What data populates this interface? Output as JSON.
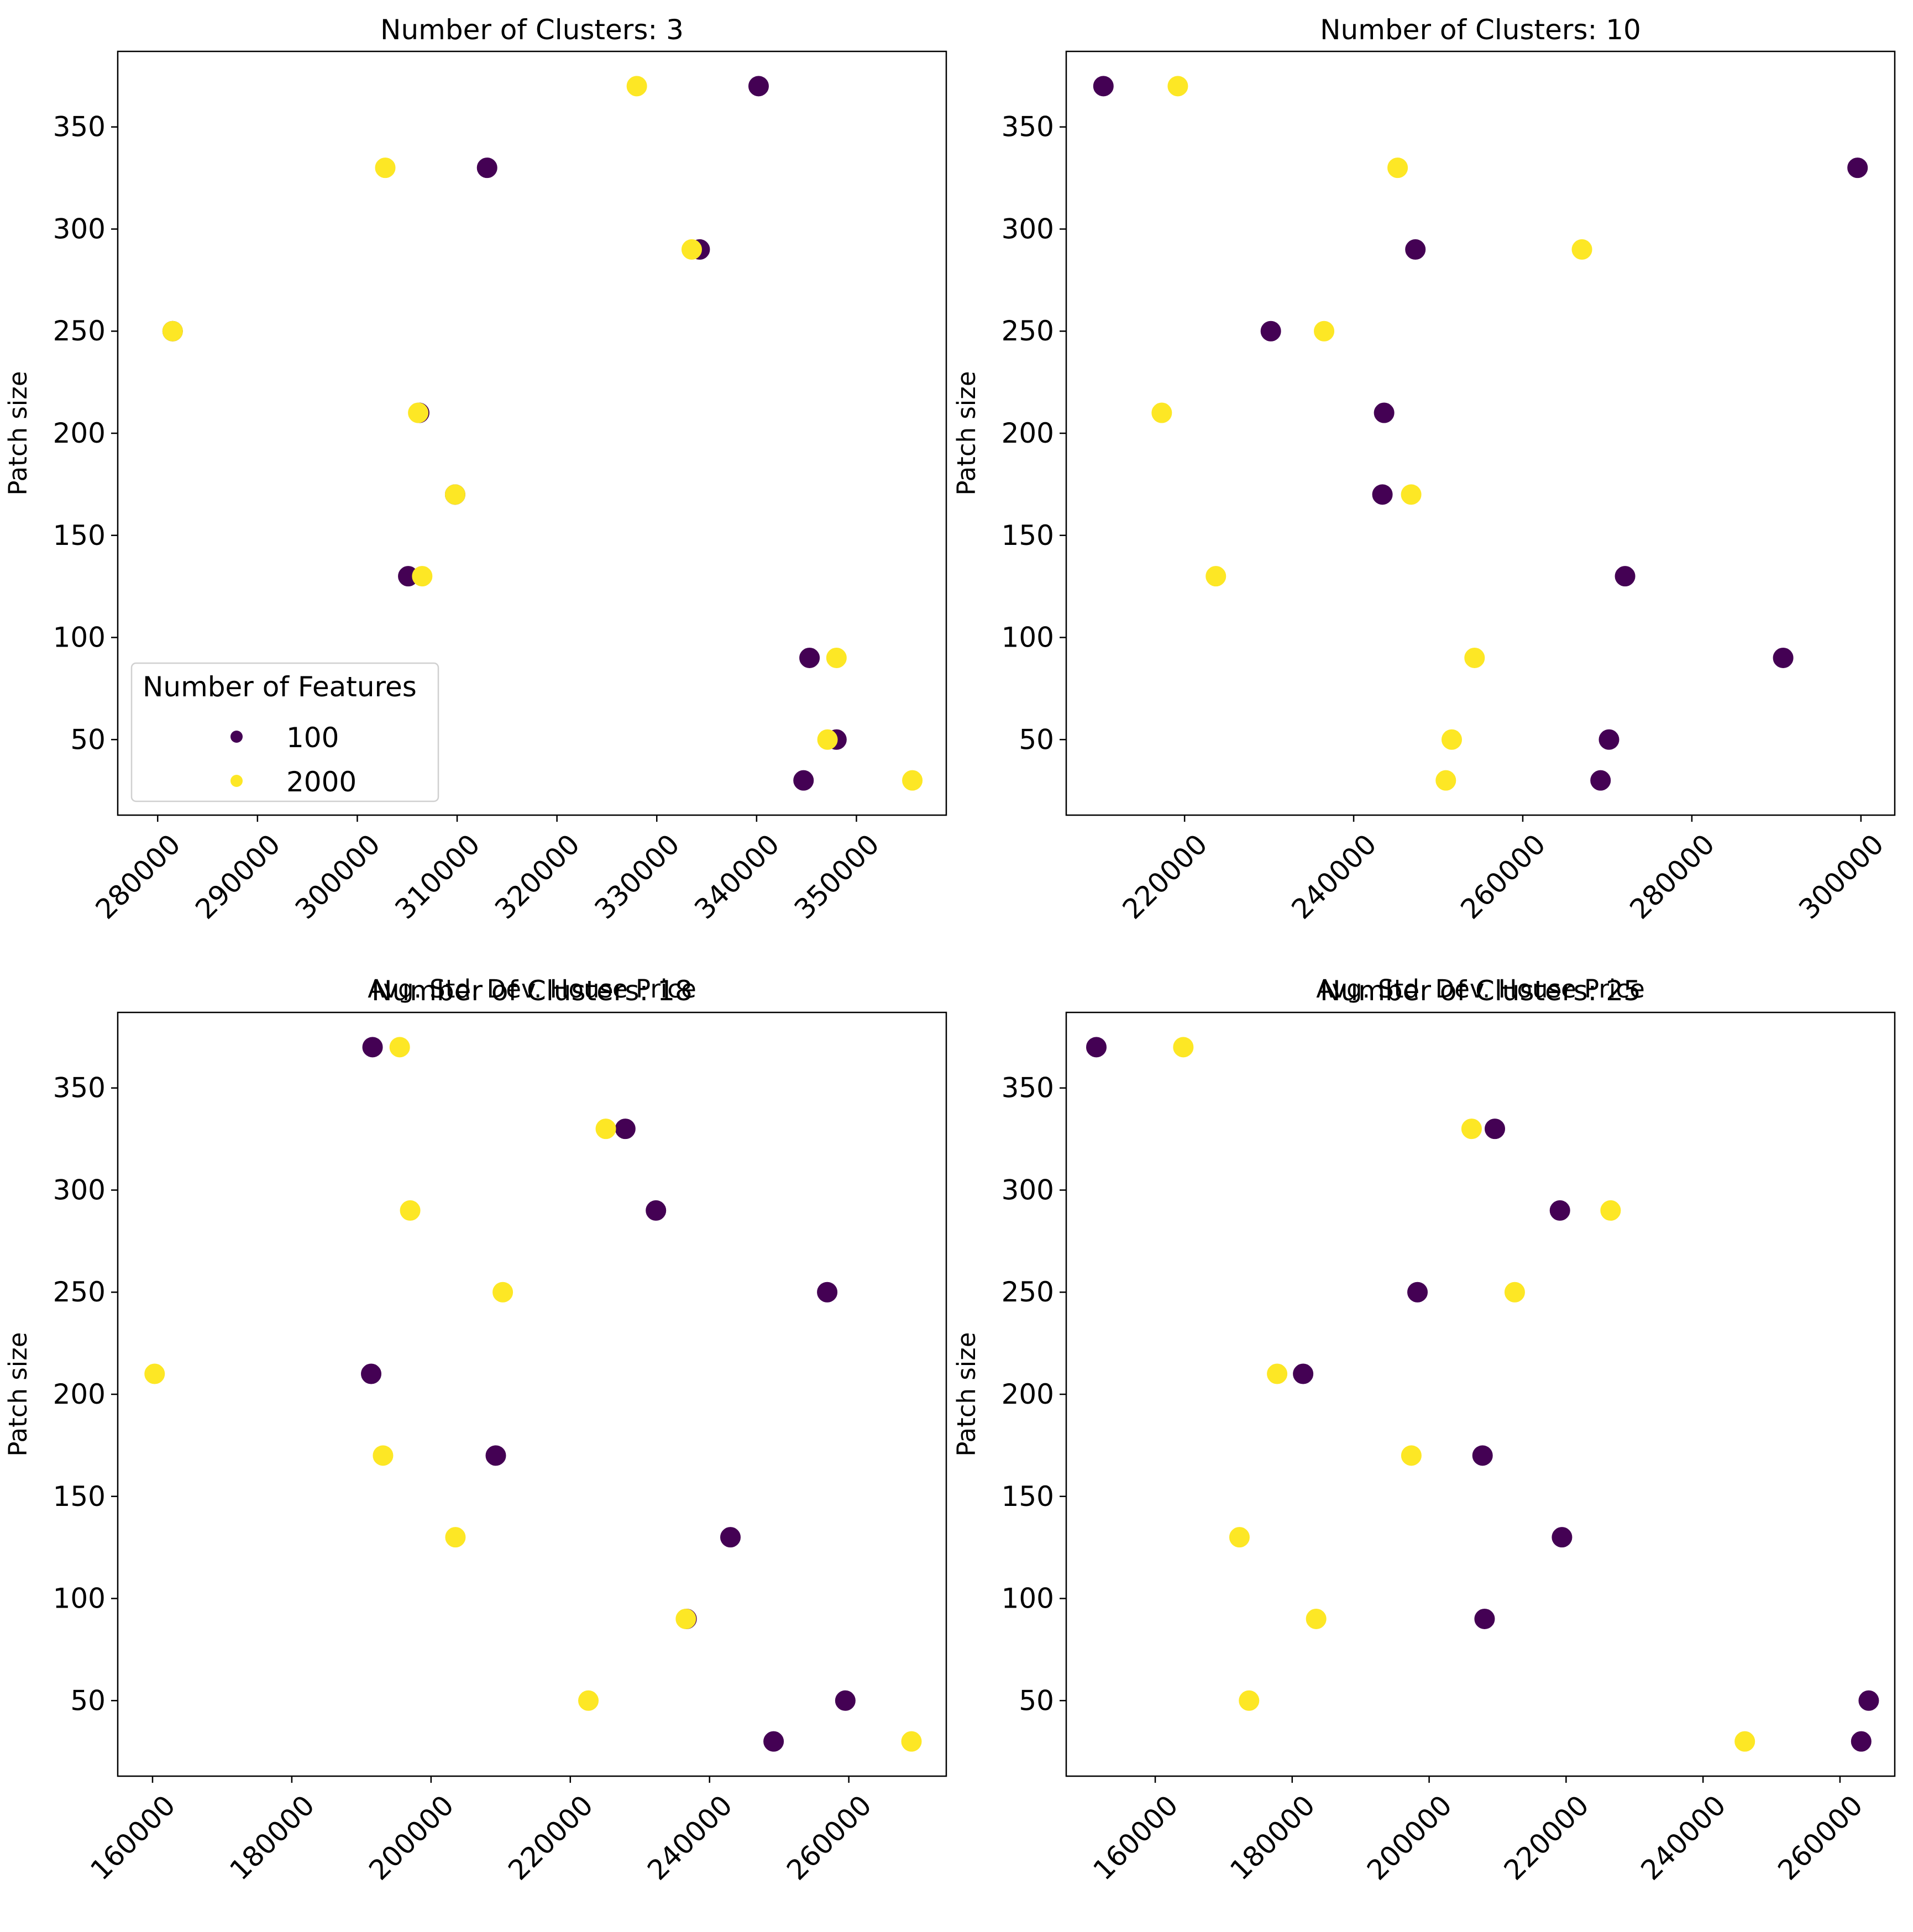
{
  "colors": {
    "100": "#440154",
    "2000": "#fde725"
  },
  "legend": {
    "title": "Number of Features",
    "entries": [
      {
        "label": "100",
        "color": "#440154"
      },
      {
        "label": "2000",
        "color": "#fde725"
      }
    ],
    "placement": "lower-left"
  },
  "chart_data": [
    {
      "type": "scatter",
      "title": "Number of Clusters: 3",
      "xlabel": "Avg. Std. Dev. House Price",
      "ylabel": "Patch size",
      "xlim": [
        276000,
        359000
      ],
      "ylim": [
        13,
        387
      ],
      "xticks": [
        280000,
        290000,
        300000,
        310000,
        320000,
        330000,
        340000,
        350000
      ],
      "yticks": [
        50,
        100,
        150,
        200,
        250,
        300,
        350
      ],
      "series": [
        {
          "name": "100",
          "points": [
            [
              340200,
              370
            ],
            [
              313000,
              330
            ],
            [
              334300,
              290
            ],
            [
              281500,
              250
            ],
            [
              306200,
              210
            ],
            [
              309800,
              170
            ],
            [
              305100,
              130
            ],
            [
              345300,
              90
            ],
            [
              348000,
              50
            ],
            [
              344700,
              30
            ]
          ]
        },
        {
          "name": "2000",
          "points": [
            [
              328000,
              370
            ],
            [
              302800,
              330
            ],
            [
              333500,
              290
            ],
            [
              281500,
              250
            ],
            [
              306100,
              210
            ],
            [
              309800,
              170
            ],
            [
              306500,
              130
            ],
            [
              348000,
              90
            ],
            [
              347100,
              50
            ],
            [
              355600,
              30
            ]
          ]
        }
      ],
      "show_legend": true
    },
    {
      "type": "scatter",
      "title": "Number of Clusters: 10",
      "xlabel": "Avg. Std. Dev. House Price",
      "ylabel": "Patch size",
      "xlim": [
        206000,
        304000
      ],
      "ylim": [
        13,
        387
      ],
      "xticks": [
        220000,
        240000,
        260000,
        280000,
        300000
      ],
      "yticks": [
        50,
        100,
        150,
        200,
        250,
        300,
        350
      ],
      "series": [
        {
          "name": "100",
          "points": [
            [
              210400,
              370
            ],
            [
              299600,
              330
            ],
            [
              247300,
              290
            ],
            [
              230200,
              250
            ],
            [
              243600,
              210
            ],
            [
              243400,
              170
            ],
            [
              272100,
              130
            ],
            [
              290800,
              90
            ],
            [
              270200,
              50
            ],
            [
              269200,
              30
            ]
          ]
        },
        {
          "name": "2000",
          "points": [
            [
              219200,
              370
            ],
            [
              245200,
              330
            ],
            [
              267000,
              290
            ],
            [
              236500,
              250
            ],
            [
              217300,
              210
            ],
            [
              246800,
              170
            ],
            [
              223700,
              130
            ],
            [
              254300,
              90
            ],
            [
              251600,
              50
            ],
            [
              250900,
              30
            ]
          ]
        }
      ],
      "show_legend": false
    },
    {
      "type": "scatter",
      "title": "Number of Clusters: 18",
      "xlabel": "Avg. Std. Dev. House Price",
      "ylabel": "Patch size",
      "xlim": [
        155000,
        274000
      ],
      "ylim": [
        13,
        387
      ],
      "xticks": [
        160000,
        180000,
        200000,
        220000,
        240000,
        260000
      ],
      "yticks": [
        50,
        100,
        150,
        200,
        250,
        300,
        350
      ],
      "series": [
        {
          "name": "100",
          "points": [
            [
              191600,
              370
            ],
            [
              227900,
              330
            ],
            [
              232300,
              290
            ],
            [
              256900,
              250
            ],
            [
              191400,
              210
            ],
            [
              209300,
              170
            ],
            [
              243000,
              130
            ],
            [
              236700,
              90
            ],
            [
              259500,
              50
            ],
            [
              249200,
              30
            ]
          ]
        },
        {
          "name": "2000",
          "points": [
            [
              195500,
              370
            ],
            [
              225100,
              330
            ],
            [
              197000,
              290
            ],
            [
              210300,
              250
            ],
            [
              160300,
              210
            ],
            [
              193100,
              170
            ],
            [
              203500,
              130
            ],
            [
              236600,
              90
            ],
            [
              222600,
              50
            ],
            [
              269000,
              30
            ]
          ]
        }
      ],
      "show_legend": false
    },
    {
      "type": "scatter",
      "title": "Number of Clusters: 25",
      "xlabel": "Avg. Std. Dev. House Price",
      "ylabel": "Patch size",
      "xlim": [
        147000,
        268000
      ],
      "ylim": [
        13,
        387
      ],
      "xticks": [
        160000,
        180000,
        200000,
        220000,
        240000,
        260000
      ],
      "yticks": [
        50,
        100,
        150,
        200,
        250,
        300,
        350
      ],
      "series": [
        {
          "name": "100",
          "points": [
            [
              151400,
              370
            ],
            [
              209600,
              330
            ],
            [
              219100,
              290
            ],
            [
              198300,
              250
            ],
            [
              181600,
              210
            ],
            [
              207800,
              170
            ],
            [
              219400,
              130
            ],
            [
              208100,
              90
            ],
            [
              264200,
              50
            ],
            [
              263100,
              30
            ]
          ]
        },
        {
          "name": "2000",
          "points": [
            [
              164100,
              370
            ],
            [
              206200,
              330
            ],
            [
              226500,
              290
            ],
            [
              212500,
              250
            ],
            [
              177800,
              210
            ],
            [
              197400,
              170
            ],
            [
              172300,
              130
            ],
            [
              183500,
              90
            ],
            [
              173700,
              50
            ],
            [
              246100,
              30
            ]
          ]
        }
      ],
      "show_legend": false
    }
  ]
}
